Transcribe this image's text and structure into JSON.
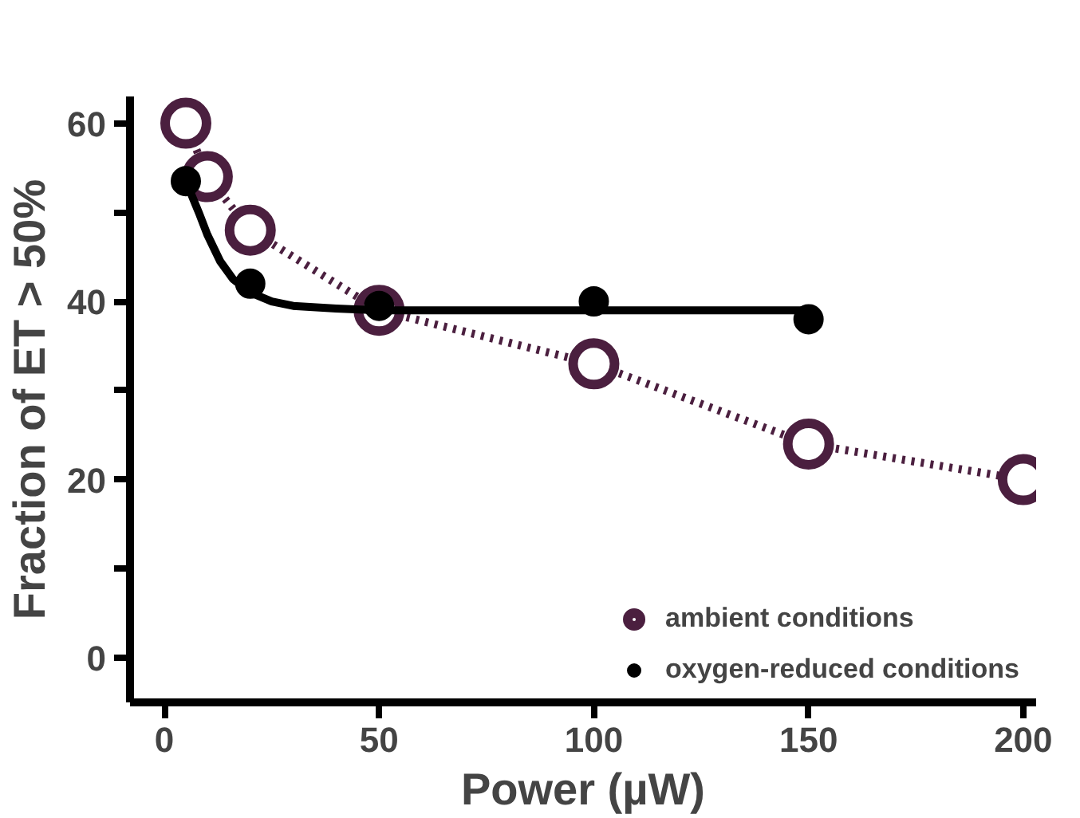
{
  "chart_data": {
    "type": "line",
    "xlabel": "Power (µW)",
    "ylabel": "Fraction of ET > 50%",
    "xlim": [
      -8,
      203
    ],
    "ylim": [
      -5,
      63
    ],
    "xticks": [
      0,
      50,
      100,
      150,
      200
    ],
    "yticks": [
      0,
      {
        "value": 10,
        "label": null
      },
      20,
      {
        "value": 30,
        "label": null
      },
      40,
      {
        "value": 50,
        "label": null
      },
      60
    ],
    "grid": false,
    "legend": "bottom right",
    "series": [
      {
        "name": "ambient conditions",
        "color": "#4b1f3f",
        "marker": "circle",
        "line_style": "dotted",
        "x": [
          5,
          10,
          20,
          50,
          100,
          150,
          200
        ],
        "values": [
          60,
          54,
          48,
          39,
          33,
          24,
          20
        ]
      },
      {
        "name": "oxygen-reduced conditions",
        "type": "scatter",
        "color": "#000000",
        "marker": "circle",
        "x": [
          5,
          20,
          50,
          100,
          150
        ],
        "values": [
          53.5,
          42,
          39.5,
          40,
          38
        ]
      },
      {
        "type": "line",
        "color": "#000000",
        "marker": "none",
        "line_style": "solid",
        "x": [
          5,
          8,
          10,
          13,
          16,
          20,
          25,
          30,
          40,
          50,
          75,
          100,
          150
        ],
        "values": [
          53.5,
          50,
          47.5,
          44.5,
          42.5,
          41,
          40,
          39.5,
          39.2,
          39,
          39,
          39,
          39
        ]
      }
    ]
  }
}
